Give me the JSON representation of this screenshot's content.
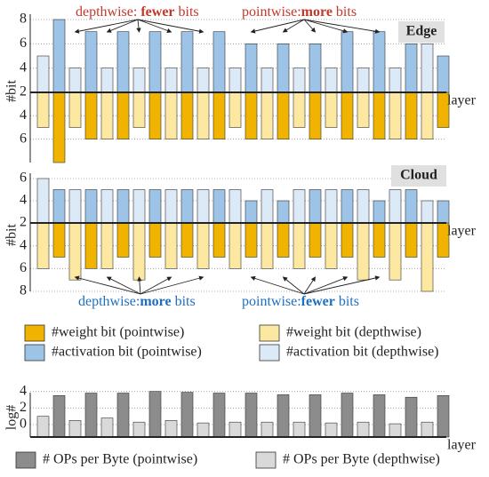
{
  "chart_data": [
    {
      "type": "bar",
      "label": "Edge",
      "ylabel": "#bit",
      "xlabel": "layer",
      "grid": true,
      "ylim": [
        2,
        8
      ],
      "yticks": [
        2,
        4,
        6,
        8
      ],
      "y2lim": [
        2,
        8
      ],
      "y2ticks": [
        4,
        6
      ],
      "series": [
        {
          "name": "#weight bit (pointwise)",
          "color": "#f0b400",
          "axis": "y2",
          "values": [
            8,
            6,
            6,
            6,
            6,
            6,
            6,
            6,
            6,
            6,
            6,
            6,
            5
          ]
        },
        {
          "name": "#weight bit (depthwise)",
          "color": "#fce8a0",
          "axis": "y2",
          "values": [
            5,
            5,
            6,
            5,
            6,
            6,
            5,
            6,
            5,
            5,
            5,
            6,
            6
          ]
        },
        {
          "name": "#activation bit (pointwise)",
          "color": "#9dc3e6",
          "axis": "y",
          "values": [
            8,
            7,
            7,
            7,
            7,
            7,
            6,
            6,
            6,
            7,
            7,
            6,
            5
          ]
        },
        {
          "name": "#activation bit (depthwise)",
          "color": "#dce9f7",
          "axis": "y",
          "values": [
            5,
            4,
            4,
            4,
            4,
            4,
            4,
            4,
            4,
            4,
            4,
            4,
            6
          ]
        }
      ],
      "annotations": [
        {
          "parts": [
            "depthwise: ",
            "fewer",
            " bits"
          ],
          "color": "#c0392b"
        },
        {
          "parts": [
            "pointwise:",
            "more",
            " bits"
          ],
          "color": "#c0392b"
        }
      ]
    },
    {
      "type": "bar",
      "label": "Cloud",
      "ylabel": "#bit",
      "xlabel": "layer",
      "grid": true,
      "ylim": [
        2,
        6
      ],
      "yticks": [
        2,
        4,
        6
      ],
      "y2lim": [
        2,
        8
      ],
      "y2ticks": [
        4,
        6,
        8
      ],
      "series": [
        {
          "color": "#f0b400",
          "axis": "y2",
          "values": [
            5,
            6,
            5,
            5,
            5,
            5,
            5,
            5,
            5,
            5,
            5,
            5,
            5
          ]
        },
        {
          "color": "#fce8a0",
          "axis": "y2",
          "values": [
            6,
            7,
            6,
            7,
            6,
            6,
            6,
            6,
            6,
            6,
            7,
            7,
            8
          ]
        },
        {
          "color": "#9dc3e6",
          "axis": "y",
          "values": [
            5,
            5,
            5,
            5,
            5,
            5,
            4,
            4,
            5,
            5,
            4,
            5,
            4
          ]
        },
        {
          "color": "#dce9f7",
          "axis": "y",
          "values": [
            6,
            5,
            5,
            5,
            5,
            5,
            5,
            5,
            5,
            5,
            5,
            5,
            4
          ]
        }
      ],
      "annotations": [
        {
          "parts": [
            "depthwise:",
            "more",
            " bits"
          ],
          "color": "#1f6fbf"
        },
        {
          "parts": [
            "pointwise:",
            "fewer",
            " bits"
          ],
          "color": "#1f6fbf"
        }
      ]
    },
    {
      "type": "bar",
      "ylabel": "log#",
      "xlabel": "layer",
      "grid": true,
      "ylim": [
        -1.5,
        4.5
      ],
      "yticks": [
        0,
        2,
        4
      ],
      "series": [
        {
          "name": "# OPs per Byte (pointwise)",
          "color": "#8c8c8c",
          "values": [
            3.5,
            3.8,
            3.8,
            4,
            3.9,
            3.8,
            3.8,
            3.6,
            3.6,
            3.8,
            3.6,
            3.3,
            3.5
          ]
        },
        {
          "name": "# OPs per Byte (depthwise)",
          "color": "#d9d9d9",
          "values": [
            1,
            0.5,
            0.8,
            0.3,
            0.5,
            0.2,
            0.3,
            0.3,
            0.3,
            0.2,
            0.3,
            0.1,
            0.3
          ]
        }
      ]
    }
  ]
}
